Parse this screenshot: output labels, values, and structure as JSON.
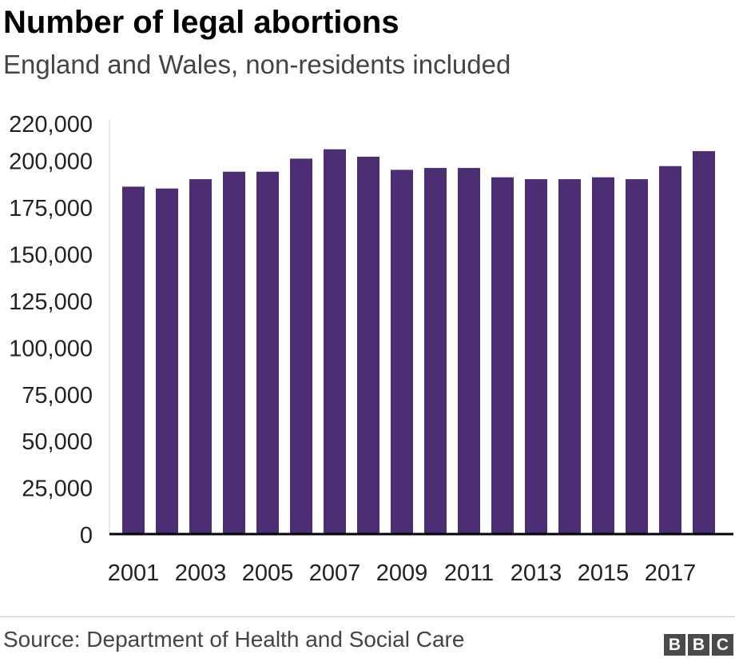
{
  "header": {
    "title": "Number of legal abortions",
    "subtitle": "England and Wales, non-residents included"
  },
  "footer": {
    "source": "Source: Department of Health and Social Care",
    "logo_letters": [
      "B",
      "B",
      "C"
    ]
  },
  "colors": {
    "bar": "#4b2e73",
    "axis": "#000000",
    "text": "#222222"
  },
  "chart_data": {
    "type": "bar",
    "title": "Number of legal abortions",
    "subtitle": "England and Wales, non-residents included",
    "xlabel": "",
    "ylabel": "",
    "categories": [
      "2001",
      "2002",
      "2003",
      "2004",
      "2005",
      "2006",
      "2007",
      "2008",
      "2009",
      "2010",
      "2011",
      "2012",
      "2013",
      "2014",
      "2015",
      "2016",
      "2017",
      "2018"
    ],
    "values": [
      186000,
      185000,
      190000,
      194000,
      194000,
      201000,
      206000,
      202000,
      195000,
      196000,
      196000,
      191000,
      190000,
      190000,
      191000,
      190000,
      197000,
      205000
    ],
    "x_tick_labels": [
      "2001",
      "2003",
      "2005",
      "2007",
      "2009",
      "2011",
      "2013",
      "2015",
      "2017"
    ],
    "y_ticks": [
      0,
      25000,
      50000,
      75000,
      100000,
      125000,
      150000,
      175000,
      200000,
      220000
    ],
    "y_tick_labels": [
      "0",
      "25,000",
      "50,000",
      "75,000",
      "100,000",
      "125,000",
      "150,000",
      "175,000",
      "200,000",
      "220,000"
    ],
    "ylim": [
      0,
      220000
    ],
    "grid": false,
    "legend": "none"
  }
}
